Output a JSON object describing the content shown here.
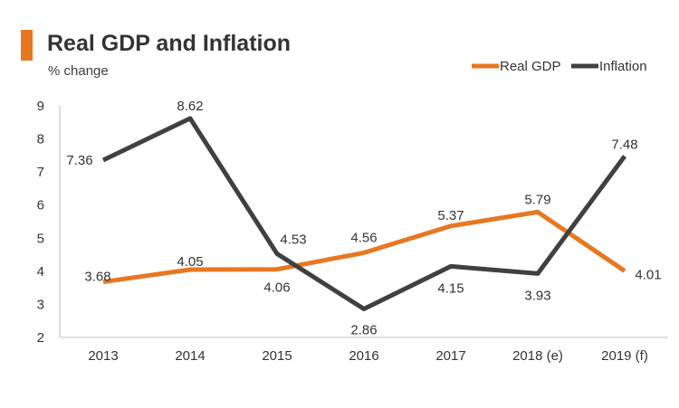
{
  "colors": {
    "accent": "#E87722",
    "real_gdp": "#E87722",
    "inflation": "#404040",
    "axis": "#bfbfbf",
    "text": "#333333"
  },
  "chart_data": {
    "type": "line",
    "title": "Real GDP and Inflation",
    "subtitle": "% change",
    "categories": [
      "2013",
      "2014",
      "2015",
      "2016",
      "2017",
      "2018 (e)",
      "2019 (f)"
    ],
    "ylim": [
      2,
      9
    ],
    "yticks": [
      2,
      3,
      4,
      5,
      6,
      7,
      8,
      9
    ],
    "grid": false,
    "legend_position": "top-right",
    "series": [
      {
        "name": "Real GDP",
        "color": "#E87722",
        "values": [
          3.68,
          4.05,
          4.06,
          4.56,
          5.37,
          5.79,
          4.01
        ]
      },
      {
        "name": "Inflation",
        "color": "#404040",
        "values": [
          7.36,
          8.62,
          4.53,
          2.86,
          4.15,
          3.93,
          7.48
        ]
      }
    ]
  }
}
